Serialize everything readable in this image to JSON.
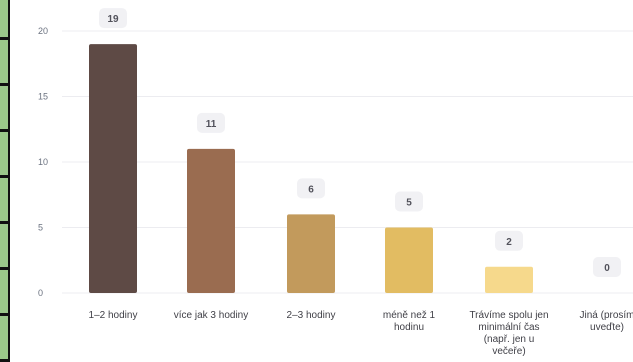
{
  "chart_data": {
    "type": "bar",
    "categories": [
      [
        "1–2 hodiny"
      ],
      [
        "více jak 3 hodiny"
      ],
      [
        "2–3 hodiny"
      ],
      [
        "méně než 1",
        "hodinu"
      ],
      [
        "Trávíme spolu jen",
        "minimální čas",
        "(např. jen u",
        "večeře)"
      ],
      [
        "Jiná (prosím",
        "uveďte)"
      ]
    ],
    "values": [
      19,
      11,
      6,
      5,
      2,
      0
    ],
    "colors": [
      "#5e4a45",
      "#9a6c50",
      "#c29a5c",
      "#e2bc62",
      "#f6d98c",
      "#f6d98c"
    ],
    "yticks": [
      0,
      5,
      10,
      15,
      20
    ],
    "ylim": [
      0,
      20
    ],
    "grid": true,
    "title": "",
    "xlabel": "",
    "ylabel": ""
  },
  "sidebar": {
    "color": "#9bc98a"
  }
}
